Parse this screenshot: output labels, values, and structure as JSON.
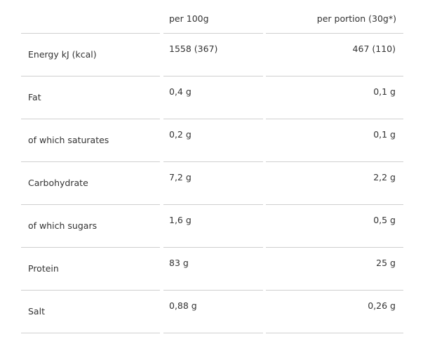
{
  "table": {
    "header": [
      "per 100g",
      "per portion (30g*)"
    ],
    "rows": [
      [
        "Energy kJ (kcal)",
        "1558 (367)",
        "467 (110)"
      ],
      [
        "Fat",
        "0,4 g",
        "0,1 g"
      ],
      [
        "of which saturates",
        "0,2 g",
        "0,1 g"
      ],
      [
        "Carbohydrate",
        "7,2 g",
        "2,2 g"
      ],
      [
        "of which sugars",
        "1,6 g",
        "0,5 g"
      ],
      [
        "Protein",
        "83 g",
        "25 g"
      ],
      [
        "Salt",
        "0,88 g",
        "0,26 g"
      ]
    ]
  }
}
